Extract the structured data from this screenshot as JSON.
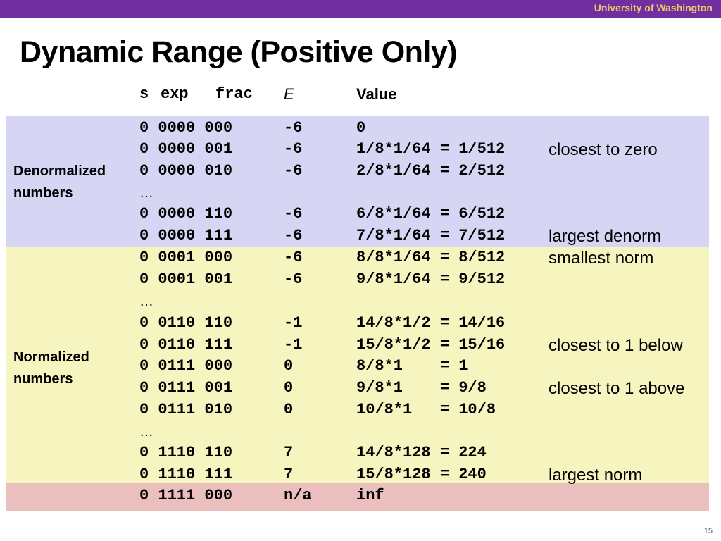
{
  "header": {
    "institution": "University of Washington"
  },
  "title": "Dynamic Range (Positive Only)",
  "columns": {
    "s": "s",
    "exp": "exp",
    "frac": "frac",
    "E": "E",
    "value": "Value"
  },
  "groups": {
    "denormalized": "Denormalized\nnumbers",
    "normalized": "Normalized\nnumbers"
  },
  "rows": [
    {
      "bits": "0 0000 000",
      "e": "-6",
      "value": "0",
      "note": ""
    },
    {
      "bits": "0 0000 001",
      "e": "-6",
      "value": "1/8*1/64 = 1/512",
      "note": "closest to zero"
    },
    {
      "bits": "0 0000 010",
      "e": "-6",
      "value": "2/8*1/64 = 2/512",
      "note": ""
    },
    {
      "bits": "…",
      "e": "",
      "value": "",
      "note": ""
    },
    {
      "bits": "0 0000 110",
      "e": "-6",
      "value": "6/8*1/64 = 6/512",
      "note": ""
    },
    {
      "bits": "0 0000 111",
      "e": "-6",
      "value": "7/8*1/64 = 7/512",
      "note": "largest denorm"
    },
    {
      "bits": "0 0001 000",
      "e": "-6",
      "value": "8/8*1/64 = 8/512",
      "note": "smallest norm"
    },
    {
      "bits": "0 0001 001",
      "e": "-6",
      "value": "9/8*1/64 = 9/512",
      "note": ""
    },
    {
      "bits": "…",
      "e": "",
      "value": "",
      "note": ""
    },
    {
      "bits": "0 0110 110",
      "e": "-1",
      "value": "14/8*1/2 = 14/16",
      "note": ""
    },
    {
      "bits": "0 0110 111",
      "e": "-1",
      "value": "15/8*1/2 = 15/16",
      "note": "closest to 1 below"
    },
    {
      "bits": "0 0111 000",
      "e": "0",
      "value": "8/8*1    = 1",
      "note": ""
    },
    {
      "bits": "0 0111 001",
      "e": "0",
      "value": "9/8*1    = 9/8",
      "note": "closest to 1 above"
    },
    {
      "bits": "0 0111 010",
      "e": "0",
      "value": "10/8*1   = 10/8",
      "note": ""
    },
    {
      "bits": "…",
      "e": "",
      "value": "",
      "note": ""
    },
    {
      "bits": "0 1110 110",
      "e": "7",
      "value": "14/8*128 = 224",
      "note": ""
    },
    {
      "bits": "0 1110 111",
      "e": "7",
      "value": "15/8*128 = 240",
      "note": "largest norm"
    },
    {
      "bits": "0 1111 000",
      "e": "n/a",
      "value": "inf",
      "note": ""
    }
  ],
  "page_number": "15",
  "colors": {
    "topbar": "#6f2fa0",
    "institution_text": "#e9c86a",
    "denormalized_band": "#d6d5f3",
    "normalized_band": "#f6f4bf",
    "special_band": "#ecbfbf"
  }
}
